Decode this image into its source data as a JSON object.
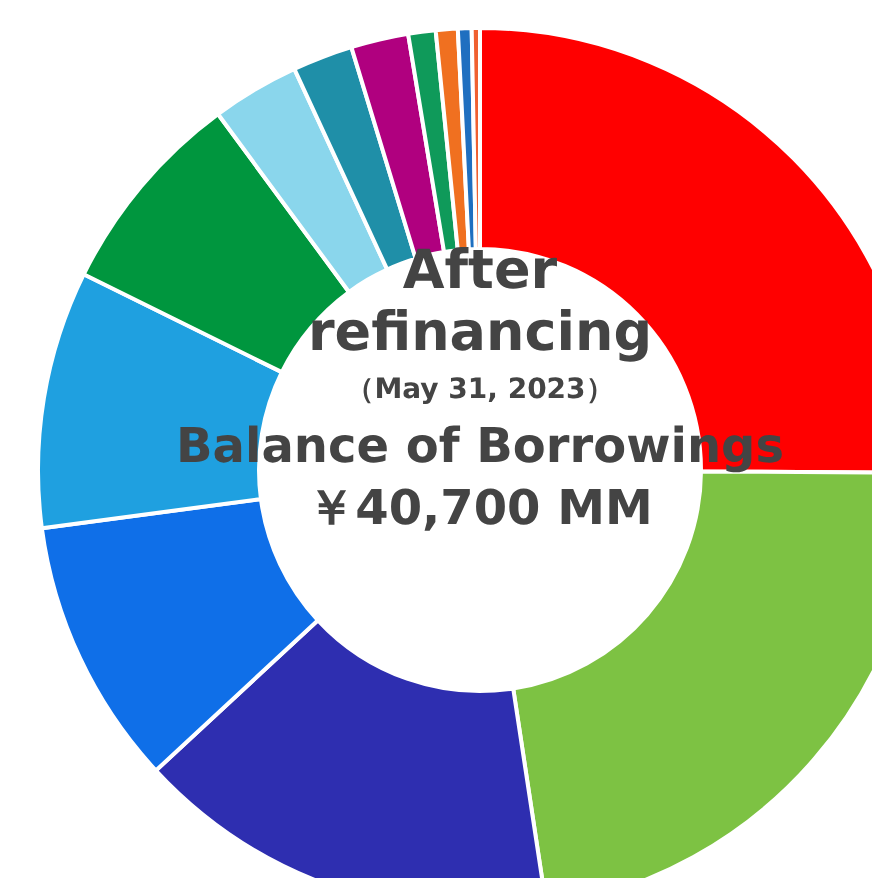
{
  "chart_data": {
    "type": "donut",
    "title": "After refinancing",
    "subtitle": "（May 31, 2023）",
    "annotations": [
      "Balance of Borrowings",
      "￥40,700 MM"
    ],
    "categories": [
      null,
      null,
      null,
      null,
      null,
      null,
      null,
      null,
      null,
      null,
      null,
      null,
      null
    ],
    "values": [
      25.1,
      22.5,
      15.5,
      9.8,
      9.4,
      7.6,
      3.2,
      2.2,
      2.1,
      1.0,
      0.8,
      0.5,
      0.3
    ],
    "colors": [
      "#ff0000",
      "#7dc243",
      "#2e2eb0",
      "#0f6fe8",
      "#1fa0e0",
      "#00963e",
      "#8ad6ec",
      "#1f8fa8",
      "#b0007f",
      "#0f9a5a",
      "#f07020",
      "#1f6fc0",
      "#f06030"
    ],
    "legend": false
  }
}
